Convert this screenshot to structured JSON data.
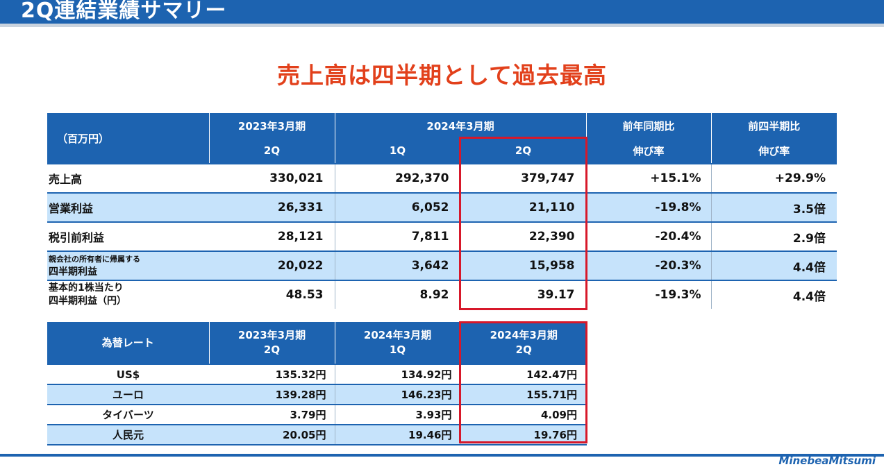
{
  "header": {
    "title": "2Q連結業績サマリー"
  },
  "headline": "売上高は四半期として過去最高",
  "summary_table": {
    "unit_label": "（百万円）",
    "period_groups": [
      "2023年3月期",
      "2024年3月期",
      "前年同期比",
      "前四半期比"
    ],
    "sub_headers": [
      "2Q",
      "1Q",
      "2Q",
      "伸び率",
      "伸び率"
    ],
    "rows": [
      {
        "label": "売上高",
        "values": [
          "330,021",
          "292,370",
          "379,747",
          "+15.1%",
          "+29.9%"
        ]
      },
      {
        "label": "営業利益",
        "values": [
          "26,331",
          "6,052",
          "21,110",
          "-19.8%",
          "3.5倍"
        ]
      },
      {
        "label": "税引前利益",
        "values": [
          "28,121",
          "7,811",
          "22,390",
          "-20.4%",
          "2.9倍"
        ]
      },
      {
        "label_line1": "親会社の所有者に帰属する",
        "label_line2": "四半期利益",
        "values": [
          "20,022",
          "3,642",
          "15,958",
          "-20.3%",
          "4.4倍"
        ]
      },
      {
        "label_line1": "基本的1株当たり",
        "label_line2": "四半期利益（円）",
        "values": [
          "48.53",
          "8.92",
          "39.17",
          "-19.3%",
          "4.4倍"
        ]
      }
    ]
  },
  "fx_table": {
    "title": "為替レート",
    "columns": [
      {
        "line1": "2023年3月期",
        "line2": "2Q"
      },
      {
        "line1": "2024年3月期",
        "line2": "1Q"
      },
      {
        "line1": "2024年3月期",
        "line2": "2Q"
      }
    ],
    "rows": [
      {
        "currency": "US$",
        "values": [
          "135.32円",
          "134.92円",
          "142.47円"
        ]
      },
      {
        "currency": "ユーロ",
        "values": [
          "139.28円",
          "146.23円",
          "155.71円"
        ]
      },
      {
        "currency": "タイバーツ",
        "values": [
          "3.79円",
          "3.93円",
          "4.09円"
        ]
      },
      {
        "currency": "人民元",
        "values": [
          "20.05円",
          "19.46円",
          "19.76円"
        ]
      }
    ]
  },
  "logo_text": "MinebeaMitsumi",
  "colors": {
    "header_blue": "#1d63b0",
    "row_light_blue": "#c6e3fb",
    "headline_red": "#e2401b",
    "highlight_red": "#d7182a"
  }
}
